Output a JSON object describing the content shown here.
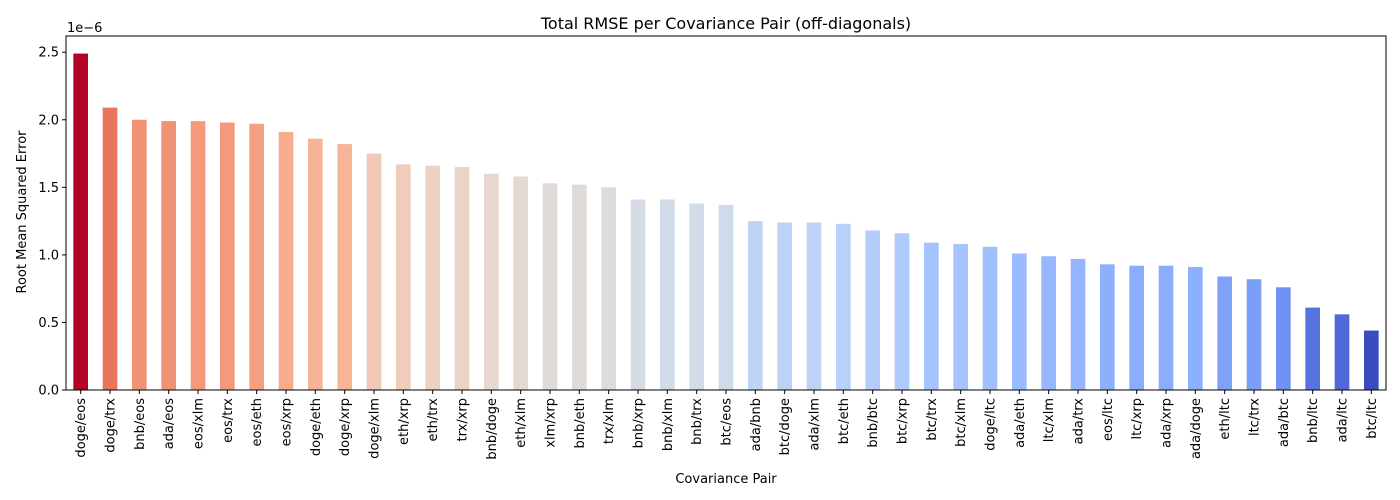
{
  "chart_data": {
    "type": "bar",
    "title": "Total RMSE per Covariance Pair (off-diagonals)",
    "xlabel": "Covariance Pair",
    "ylabel": "Root Mean Squared Error",
    "scale_label": "1e−6",
    "ylim": [
      0,
      2.62
    ],
    "yticks": [
      "0.0",
      "0.5",
      "1.0",
      "1.5",
      "2.0",
      "2.5"
    ],
    "grid": false,
    "legend": "none",
    "categories": [
      "doge/eos",
      "doge/trx",
      "bnb/eos",
      "ada/eos",
      "eos/xlm",
      "eos/trx",
      "eos/eth",
      "eos/xrp",
      "doge/eth",
      "doge/xrp",
      "doge/xlm",
      "eth/xrp",
      "eth/trx",
      "trx/xrp",
      "bnb/doge",
      "eth/xlm",
      "xlm/xrp",
      "bnb/eth",
      "trx/xlm",
      "bnb/xrp",
      "bnb/xlm",
      "bnb/trx",
      "btc/eos",
      "ada/bnb",
      "btc/doge",
      "ada/xlm",
      "btc/eth",
      "bnb/btc",
      "btc/xrp",
      "btc/trx",
      "btc/xlm",
      "doge/ltc",
      "ada/eth",
      "ltc/xlm",
      "ada/trx",
      "eos/ltc",
      "ltc/xrp",
      "ada/xrp",
      "ada/doge",
      "eth/ltc",
      "ltc/trx",
      "ada/btc",
      "bnb/ltc",
      "ada/ltc",
      "btc/ltc"
    ],
    "values": [
      2.49,
      2.09,
      2.0,
      1.99,
      1.99,
      1.98,
      1.97,
      1.91,
      1.86,
      1.82,
      1.75,
      1.67,
      1.66,
      1.65,
      1.6,
      1.58,
      1.53,
      1.52,
      1.5,
      1.41,
      1.41,
      1.38,
      1.37,
      1.25,
      1.24,
      1.24,
      1.23,
      1.18,
      1.16,
      1.09,
      1.08,
      1.06,
      1.01,
      0.99,
      0.97,
      0.93,
      0.92,
      0.92,
      0.91,
      0.84,
      0.82,
      0.76,
      0.61,
      0.56,
      0.44
    ],
    "colormap": "coolwarm",
    "colors": [
      "#b40426",
      "#e8765c",
      "#f29274",
      "#f29274",
      "#f49a7b",
      "#f49a7b",
      "#f5a081",
      "#f7ac8e",
      "#f7b396",
      "#f7b497",
      "#f2c9b4",
      "#f0cdbb",
      "#edd1c2",
      "#ead4c8",
      "#e7d7ce",
      "#e4d9d2",
      "#e0dbd8",
      "#e0dbd8",
      "#dddcdc",
      "#d5dbe5",
      "#d2dbe8",
      "#d2dbe8",
      "#cfdaea",
      "#bfd3f6",
      "#bcd2f7",
      "#bcd2f7",
      "#b9d0f9",
      "#b3cdfb",
      "#aec9fc",
      "#a5c3fe",
      "#a5c3fe",
      "#9fbfff",
      "#9abbff",
      "#97b8ff",
      "#94b6ff",
      "#8db0fe",
      "#8badfd",
      "#8badfd",
      "#8caffe",
      "#7ea1fa",
      "#7b9ff9",
      "#6f92f3",
      "#5673e0",
      "#4f69d9",
      "#3b4cc0"
    ]
  }
}
